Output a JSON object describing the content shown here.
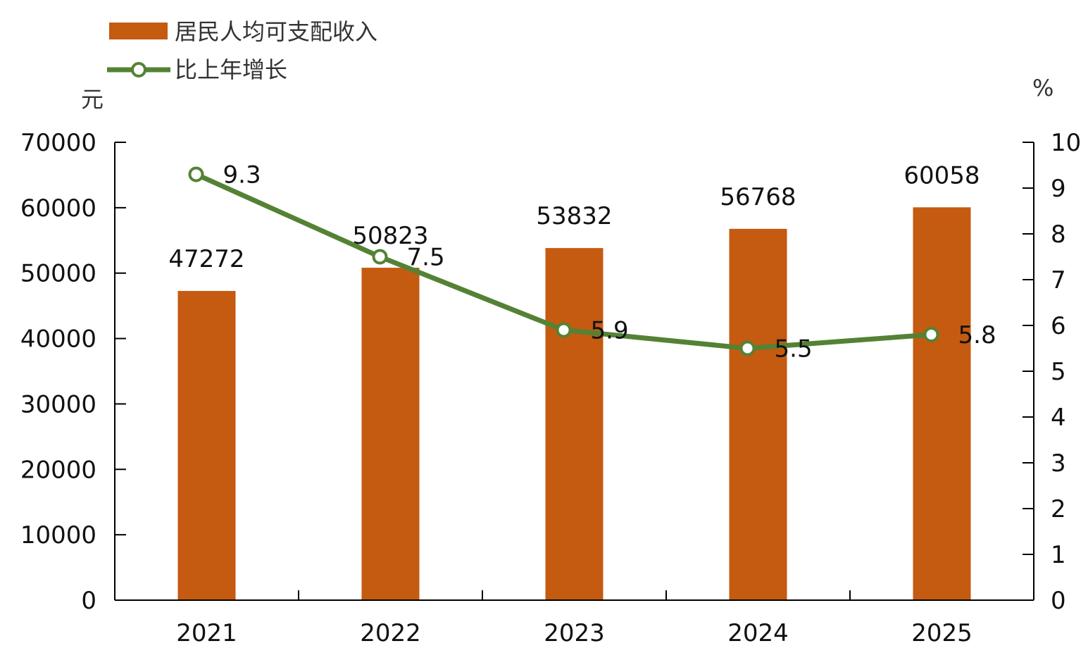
{
  "chart_data": {
    "type": "bar",
    "categories": [
      "2021",
      "2022",
      "2023",
      "2024",
      "2025"
    ],
    "series": [
      {
        "name": "居民人均可支配收入",
        "type": "bar",
        "axis": "left",
        "values": [
          47272,
          50823,
          53832,
          56768,
          60058
        ],
        "value_labels": [
          "47272",
          "50823",
          "53832",
          "56768",
          "60058"
        ]
      },
      {
        "name": "比上年增长",
        "type": "line",
        "axis": "right",
        "values": [
          9.3,
          7.5,
          5.9,
          5.5,
          5.8
        ],
        "value_labels": [
          "9.3",
          "7.5",
          "5.9",
          "5.5",
          "5.8"
        ]
      }
    ],
    "left_axis": {
      "unit": "元",
      "ylim": [
        0,
        70000
      ],
      "ticks": [
        "0",
        "10000",
        "20000",
        "30000",
        "40000",
        "50000",
        "60000",
        "70000"
      ]
    },
    "right_axis": {
      "unit": "%",
      "ylim": [
        0,
        10
      ],
      "ticks": [
        "0",
        "1",
        "2",
        "3",
        "4",
        "5",
        "6",
        "7",
        "8",
        "9",
        "10"
      ]
    },
    "legend": {
      "placement": "top-left",
      "items": [
        "居民人均可支配收入",
        "比上年增长"
      ]
    },
    "colors": {
      "bar": "#C55A11",
      "line": "#548235",
      "axis": "#000000"
    },
    "grid": false
  }
}
